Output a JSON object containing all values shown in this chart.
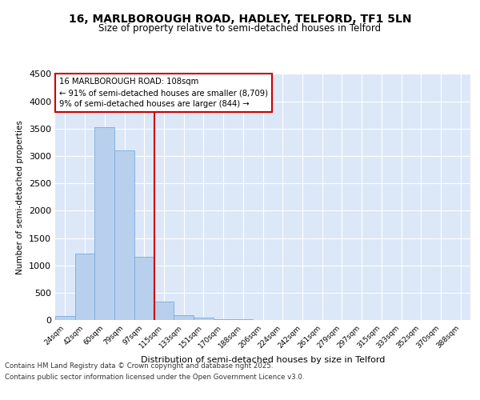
{
  "title": "16, MARLBOROUGH ROAD, HADLEY, TELFORD, TF1 5LN",
  "subtitle": "Size of property relative to semi-detached houses in Telford",
  "xlabel": "Distribution of semi-detached houses by size in Telford",
  "ylabel": "Number of semi-detached properties",
  "footer_line1": "Contains HM Land Registry data © Crown copyright and database right 2025.",
  "footer_line2": "Contains public sector information licensed under the Open Government Licence v3.0.",
  "bar_labels": [
    "24sqm",
    "42sqm",
    "60sqm",
    "79sqm",
    "97sqm",
    "115sqm",
    "133sqm",
    "151sqm",
    "170sqm",
    "188sqm",
    "206sqm",
    "224sqm",
    "242sqm",
    "261sqm",
    "279sqm",
    "297sqm",
    "315sqm",
    "333sqm",
    "352sqm",
    "370sqm",
    "388sqm"
  ],
  "bar_values": [
    75,
    1220,
    3520,
    3100,
    1150,
    330,
    90,
    50,
    20,
    10,
    5,
    2,
    1,
    0,
    0,
    0,
    0,
    0,
    0,
    0,
    0
  ],
  "bar_color": "#b8d0ee",
  "bar_edgecolor": "#7aabe0",
  "vline_index": 5,
  "vline_color": "#cc0000",
  "annot_title": "16 MARLBOROUGH ROAD: 108sqm",
  "annot_line1": "← 91% of semi-detached houses are smaller (8,709)",
  "annot_line2": "9% of semi-detached houses are larger (844) →",
  "annot_box_color": "#cc0000",
  "ylim": [
    0,
    4500
  ],
  "yticks": [
    0,
    500,
    1000,
    1500,
    2000,
    2500,
    3000,
    3500,
    4000,
    4500
  ],
  "bg_color": "#ffffff",
  "plot_bg_color": "#dce8f8",
  "title_fontsize": 10,
  "subtitle_fontsize": 8.5
}
